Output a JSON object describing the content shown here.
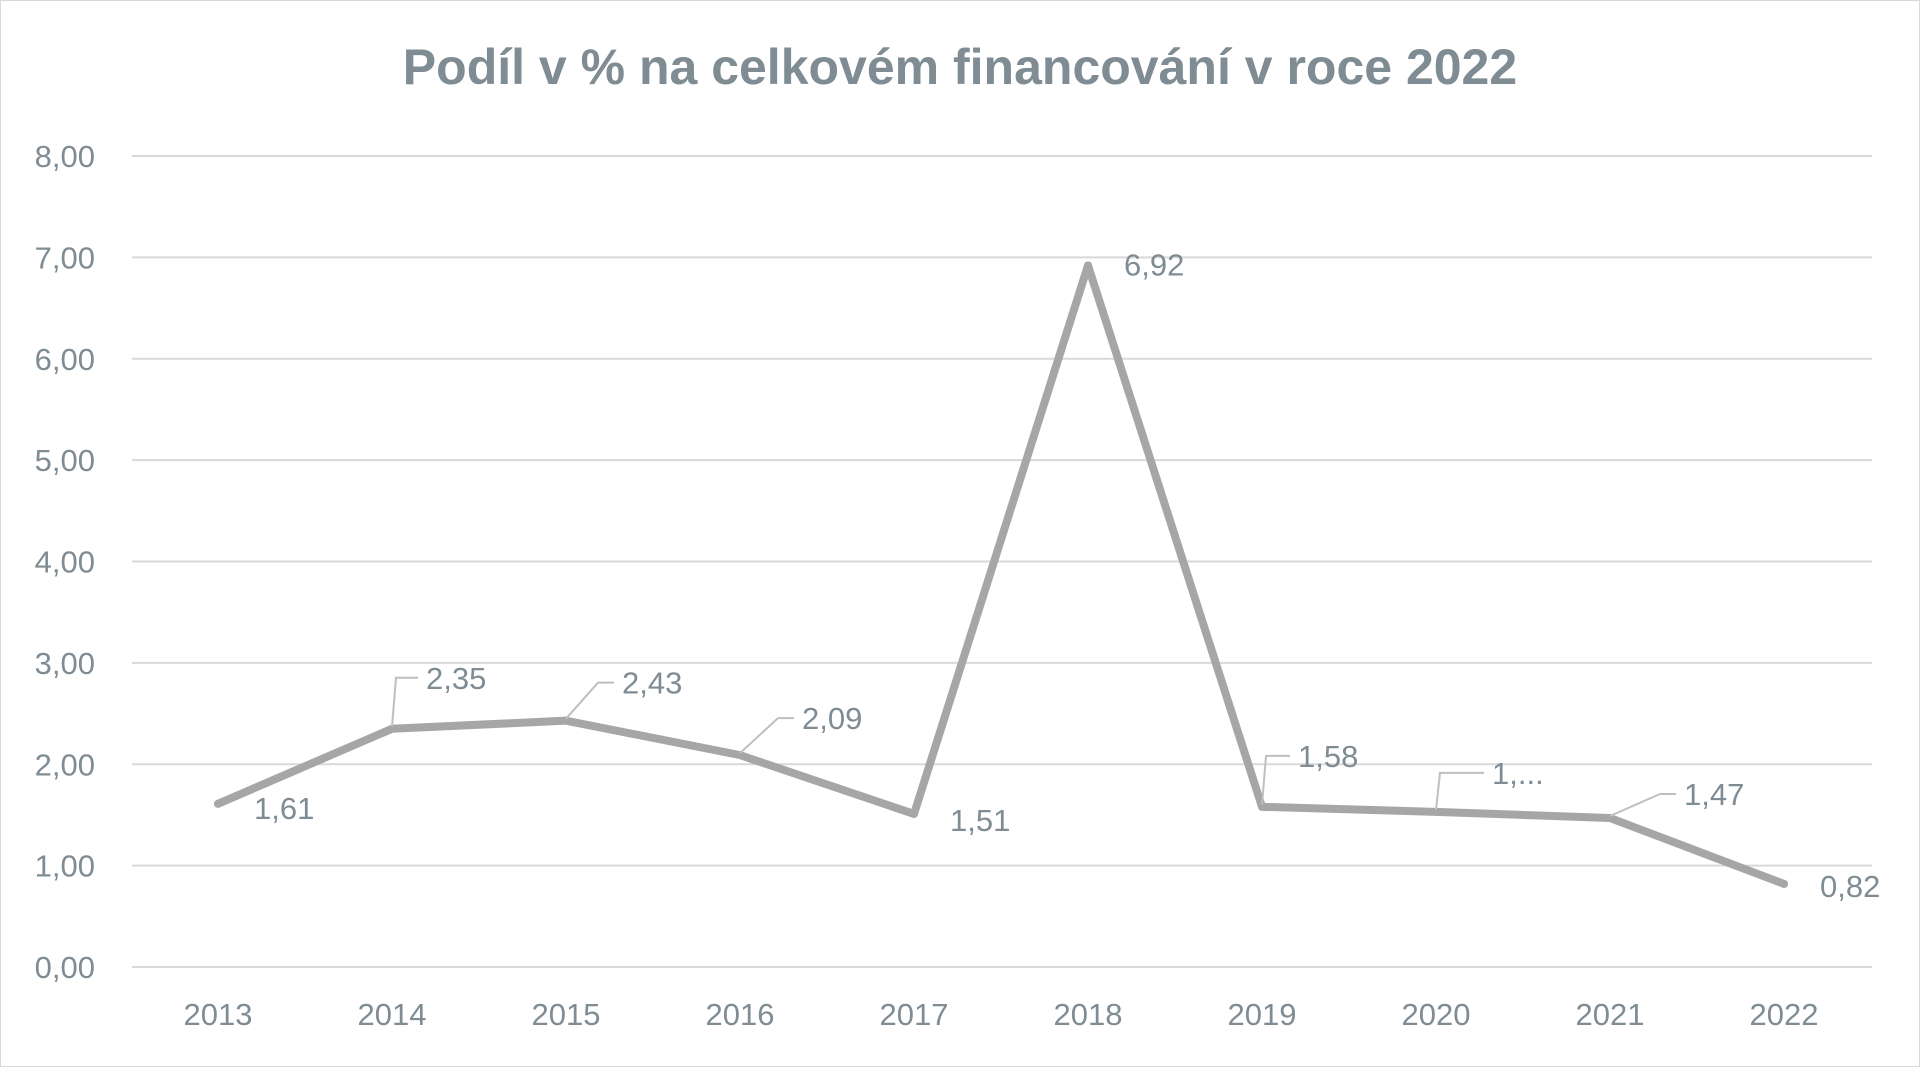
{
  "chart_data": {
    "type": "line",
    "title": "Podíl v % na celkovém financování v roce 2022",
    "xlabel": "",
    "ylabel": "",
    "categories": [
      "2013",
      "2014",
      "2015",
      "2016",
      "2017",
      "2018",
      "2019",
      "2020",
      "2021",
      "2022"
    ],
    "values": [
      1.61,
      2.35,
      2.43,
      2.09,
      1.51,
      6.92,
      1.58,
      1.53,
      1.47,
      0.82
    ],
    "data_labels": [
      "1,61",
      "2,35",
      "2,43",
      "2,09",
      "1,51",
      "6,92",
      "1,58",
      "1,...",
      "1,47",
      "0,82"
    ],
    "y_ticks": [
      "0,00",
      "1,00",
      "2,00",
      "3,00",
      "4,00",
      "5,00",
      "6,00",
      "7,00",
      "8,00"
    ],
    "ylim": [
      0,
      8
    ],
    "grid": true,
    "legend": "none",
    "line_color": "#a6a6a6",
    "grid_color": "#d9d9d9",
    "text_color": "#7f8c93"
  }
}
